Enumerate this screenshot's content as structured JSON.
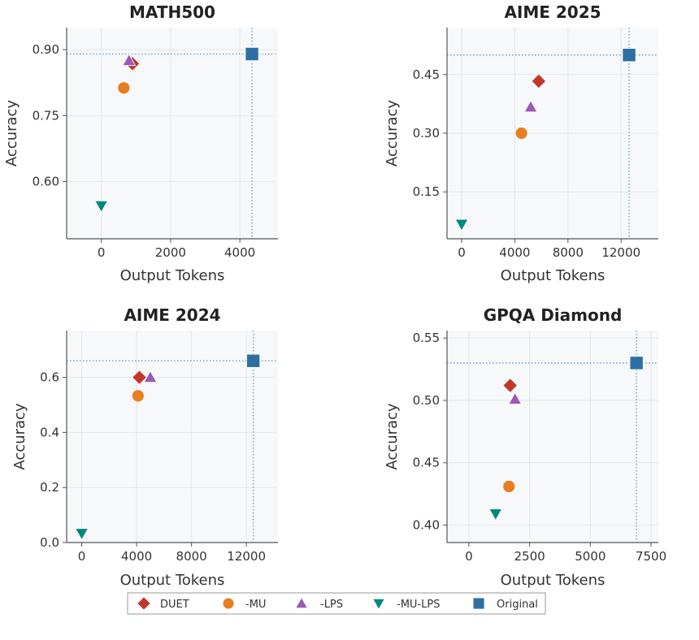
{
  "colors": {
    "DUET": "#c0392b",
    "-MU": "#e67e22",
    "-LPS": "#9b59b6",
    "-MU-LPS": "#00897b",
    "Original": "#2e6fa3",
    "refline": "#5b9bd5",
    "plot_bg": "#f6f8fa",
    "grid": "#e3e6ea"
  },
  "legend": {
    "items": [
      {
        "name": "DUET",
        "marker": "diamond"
      },
      {
        "name": "-MU",
        "marker": "circle"
      },
      {
        "name": "-LPS",
        "marker": "triangle-up"
      },
      {
        "name": "-MU-LPS",
        "marker": "triangle-down"
      },
      {
        "name": "Original",
        "marker": "square"
      }
    ]
  },
  "chart_data": [
    {
      "type": "scatter",
      "title": "MATH500",
      "xlabel": "Output Tokens",
      "ylabel": "Accuracy",
      "xlim": [
        -1000,
        5100
      ],
      "ylim": [
        0.47,
        0.95
      ],
      "xticks": [
        0,
        2000,
        4000
      ],
      "xtick_labels": [
        "0",
        "2000",
        "4000"
      ],
      "yticks": [
        0.6,
        0.75,
        0.9
      ],
      "ytick_labels": [
        "0.60",
        "0.75",
        "0.90"
      ],
      "grid": true,
      "reference_lines": {
        "x": 4350,
        "y": 0.89
      },
      "points": [
        {
          "series": "DUET",
          "x": 900,
          "y": 0.868
        },
        {
          "series": "-MU",
          "x": 650,
          "y": 0.813
        },
        {
          "series": "-LPS",
          "x": 800,
          "y": 0.875
        },
        {
          "series": "-MU-LPS",
          "x": 0,
          "y": 0.545
        },
        {
          "series": "Original",
          "x": 4350,
          "y": 0.89
        }
      ]
    },
    {
      "type": "scatter",
      "title": "AIME 2025",
      "xlabel": "Output Tokens",
      "ylabel": "Accuracy",
      "xlim": [
        -1100,
        14800
      ],
      "ylim": [
        0.03,
        0.57
      ],
      "xticks": [
        0,
        4000,
        8000,
        12000
      ],
      "xtick_labels": [
        "0",
        "4000",
        "8000",
        "12000"
      ],
      "yticks": [
        0.15,
        0.3,
        0.45
      ],
      "ytick_labels": [
        "0.15",
        "0.30",
        "0.45"
      ],
      "grid": true,
      "reference_lines": {
        "x": 12600,
        "y": 0.5
      },
      "points": [
        {
          "series": "DUET",
          "x": 5800,
          "y": 0.433
        },
        {
          "series": "-MU",
          "x": 4500,
          "y": 0.3
        },
        {
          "series": "-LPS",
          "x": 5200,
          "y": 0.367
        },
        {
          "series": "-MU-LPS",
          "x": 0,
          "y": 0.067
        },
        {
          "series": "Original",
          "x": 12600,
          "y": 0.5
        }
      ]
    },
    {
      "type": "scatter",
      "title": "AIME 2024",
      "xlabel": "Output Tokens",
      "ylabel": "Accuracy",
      "xlim": [
        -1100,
        14300
      ],
      "ylim": [
        0.0,
        0.77
      ],
      "xticks": [
        0,
        4000,
        8000,
        12000
      ],
      "xtick_labels": [
        "0",
        "4000",
        "8000",
        "12000"
      ],
      "yticks": [
        0.0,
        0.2,
        0.4,
        0.6
      ],
      "ytick_labels": [
        "0.0",
        "0.2",
        "0.4",
        "0.6"
      ],
      "grid": true,
      "reference_lines": {
        "x": 12500,
        "y": 0.66
      },
      "points": [
        {
          "series": "DUET",
          "x": 4200,
          "y": 0.6
        },
        {
          "series": "-MU",
          "x": 4100,
          "y": 0.533
        },
        {
          "series": "-LPS",
          "x": 5000,
          "y": 0.6
        },
        {
          "series": "-MU-LPS",
          "x": 0,
          "y": 0.033
        },
        {
          "series": "Original",
          "x": 12500,
          "y": 0.66
        }
      ]
    },
    {
      "type": "scatter",
      "title": "GPQA Diamond",
      "xlabel": "Output Tokens",
      "ylabel": "Accuracy",
      "xlim": [
        -900,
        7800
      ],
      "ylim": [
        0.386,
        0.556
      ],
      "xticks": [
        0,
        2500,
        5000,
        7500
      ],
      "xtick_labels": [
        "0",
        "2500",
        "5000",
        "7500"
      ],
      "yticks": [
        0.4,
        0.45,
        0.5,
        0.55
      ],
      "ytick_labels": [
        "0.40",
        "0.45",
        "0.50",
        "0.55"
      ],
      "grid": true,
      "reference_lines": {
        "x": 6900,
        "y": 0.53
      },
      "points": [
        {
          "series": "DUET",
          "x": 1700,
          "y": 0.512
        },
        {
          "series": "-MU",
          "x": 1650,
          "y": 0.431
        },
        {
          "series": "-LPS",
          "x": 1900,
          "y": 0.501
        },
        {
          "series": "-MU-LPS",
          "x": 1100,
          "y": 0.409
        },
        {
          "series": "Original",
          "x": 6900,
          "y": 0.53
        }
      ]
    }
  ]
}
